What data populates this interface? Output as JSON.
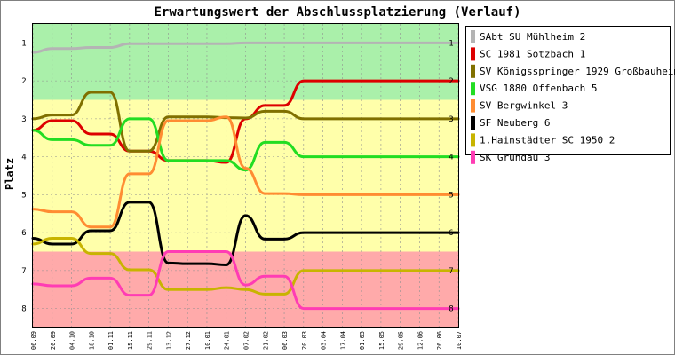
{
  "chart_data": {
    "type": "line",
    "title": "Erwartungswert der Abschlussplatzierung (Verlauf)",
    "ylabel": "Platz",
    "xlabel": "",
    "ylim": [
      8.5,
      0.5
    ],
    "yticks": [
      "1",
      "2",
      "3",
      "4",
      "5",
      "6",
      "7",
      "8"
    ],
    "categories": [
      "06.09",
      "20.09",
      "04.10",
      "18.10",
      "01.11",
      "15.11",
      "29.11",
      "13.12",
      "27.12",
      "10.01",
      "24.01",
      "07.02",
      "21.02",
      "06.03",
      "20.03",
      "03.04",
      "17.04",
      "01.05",
      "15.05",
      "29.05",
      "12.06",
      "26.06",
      "10.07"
    ],
    "zones": [
      {
        "from": 0.5,
        "to": 2.5,
        "color": "#aaf0aa"
      },
      {
        "from": 2.5,
        "to": 6.5,
        "color": "#ffffaa"
      },
      {
        "from": 6.5,
        "to": 8.5,
        "color": "#ffaaaa"
      }
    ],
    "legend_position": "right",
    "series": [
      {
        "name": "SAbt SU Mühlheim 2",
        "color": "#b4b4b4",
        "values": [
          1.25,
          1.15,
          1.15,
          1.12,
          1.12,
          1.02,
          1.02,
          1.02,
          1.02,
          1.02,
          1.02,
          1.0,
          1.0,
          1.0,
          1.0,
          1.0,
          1.0,
          1.0,
          1.0,
          1.0,
          1.0,
          1.0,
          1.0
        ]
      },
      {
        "name": "SC 1981 Sotzbach 1",
        "color": "#dd0000",
        "values": [
          3.3,
          3.05,
          3.05,
          3.4,
          3.4,
          3.85,
          3.85,
          4.1,
          4.1,
          4.1,
          4.15,
          3.0,
          2.65,
          2.65,
          2.0,
          2.0,
          2.0,
          2.0,
          2.0,
          2.0,
          2.0,
          2.0,
          2.0
        ]
      },
      {
        "name": "SV Königsspringer 1929 Großbauheim 3",
        "color": "#807000",
        "values": [
          3.0,
          2.9,
          2.9,
          2.3,
          2.3,
          3.85,
          3.85,
          2.95,
          2.95,
          2.95,
          2.97,
          2.98,
          2.8,
          2.8,
          3.0,
          3.0,
          3.0,
          3.0,
          3.0,
          3.0,
          3.0,
          3.0,
          3.0
        ]
      },
      {
        "name": "VSG 1880 Offenbach 5",
        "color": "#22dd22",
        "values": [
          3.3,
          3.55,
          3.55,
          3.7,
          3.7,
          3.0,
          3.0,
          4.1,
          4.1,
          4.1,
          4.1,
          4.35,
          3.62,
          3.62,
          4.0,
          4.0,
          4.0,
          4.0,
          4.0,
          4.0,
          4.0,
          4.0,
          4.0
        ]
      },
      {
        "name": "SV Bergwinkel 3",
        "color": "#ff8c32",
        "values": [
          5.38,
          5.45,
          5.45,
          5.85,
          5.85,
          4.45,
          4.45,
          3.05,
          3.05,
          3.05,
          2.95,
          4.3,
          4.97,
          4.97,
          5.0,
          5.0,
          5.0,
          5.0,
          5.0,
          5.0,
          5.0,
          5.0,
          5.0
        ]
      },
      {
        "name": "SF Neuberg 6",
        "color": "#000000",
        "values": [
          6.15,
          6.3,
          6.3,
          5.95,
          5.95,
          5.2,
          5.2,
          6.8,
          6.82,
          6.82,
          6.85,
          5.55,
          6.17,
          6.17,
          6.0,
          6.0,
          6.0,
          6.0,
          6.0,
          6.0,
          6.0,
          6.0,
          6.0
        ]
      },
      {
        "name": "1.Hainstädter SC 1950 2",
        "color": "#c8b400",
        "values": [
          6.3,
          6.15,
          6.15,
          6.55,
          6.55,
          6.98,
          6.98,
          7.5,
          7.5,
          7.5,
          7.45,
          7.5,
          7.62,
          7.62,
          7.0,
          7.0,
          7.0,
          7.0,
          7.0,
          7.0,
          7.0,
          7.0,
          7.0
        ]
      },
      {
        "name": "SK Gründau 3",
        "color": "#ff3cb4",
        "values": [
          7.35,
          7.4,
          7.4,
          7.2,
          7.2,
          7.65,
          7.65,
          6.5,
          6.5,
          6.5,
          6.5,
          7.38,
          7.15,
          7.15,
          8.0,
          8.0,
          8.0,
          8.0,
          8.0,
          8.0,
          8.0,
          8.0,
          8.0
        ]
      }
    ]
  }
}
